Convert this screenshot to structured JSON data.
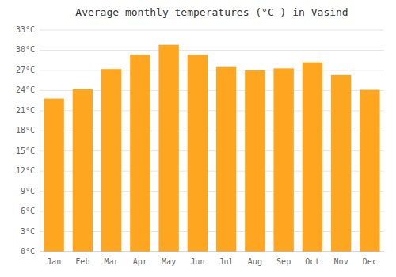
{
  "chart_data": {
    "type": "bar",
    "title": "Average monthly temperatures (°C ) in Vasind",
    "categories": [
      "Jan",
      "Feb",
      "Mar",
      "Apr",
      "May",
      "Jun",
      "Jul",
      "Aug",
      "Sep",
      "Oct",
      "Nov",
      "Dec"
    ],
    "values": [
      22.8,
      24.2,
      27.2,
      29.3,
      30.8,
      29.3,
      27.5,
      27.0,
      27.3,
      28.2,
      26.3,
      24.1
    ],
    "color": "#FFA620",
    "ylim": [
      0,
      33
    ],
    "yticks": [
      {
        "value": 0,
        "label": "0°C"
      },
      {
        "value": 3,
        "label": "3°C"
      },
      {
        "value": 6,
        "label": "6°C"
      },
      {
        "value": 9,
        "label": "9°C"
      },
      {
        "value": 12,
        "label": "12°C"
      },
      {
        "value": 15,
        "label": "15°C"
      },
      {
        "value": 18,
        "label": "18°C"
      },
      {
        "value": 21,
        "label": "21°C"
      },
      {
        "value": 24,
        "label": "24°C"
      },
      {
        "value": 27,
        "label": "27°C"
      },
      {
        "value": 30,
        "label": "30°C"
      },
      {
        "value": 33,
        "label": "33°C"
      }
    ],
    "grid": true
  }
}
